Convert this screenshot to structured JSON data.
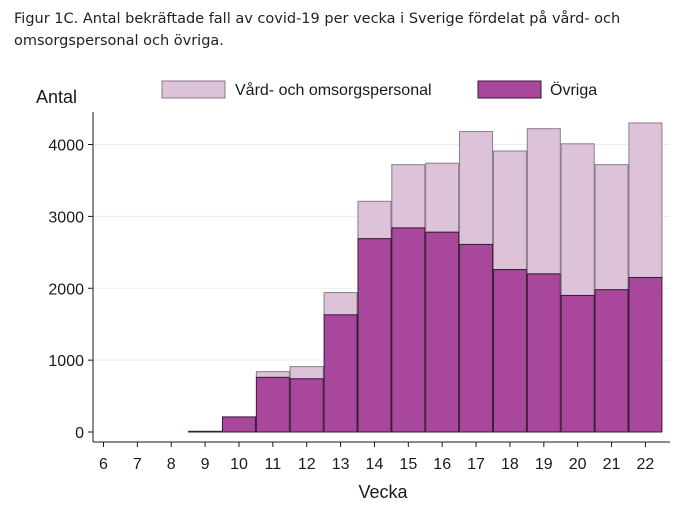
{
  "figure": {
    "caption": "Figur 1C. Antal bekräftade fall av covid-19 per vecka i Sverige fördelat på vård- och omsorgspersonal och övriga."
  },
  "chart_data": {
    "type": "bar",
    "stacked": true,
    "title": "",
    "xlabel": "Vecka",
    "ylabel": "Antal",
    "categories": [
      "6",
      "7",
      "8",
      "9",
      "10",
      "11",
      "12",
      "13",
      "14",
      "15",
      "16",
      "17",
      "18",
      "19",
      "20",
      "21",
      "22"
    ],
    "x_ticks": [
      "6",
      "7",
      "8",
      "9",
      "10",
      "11",
      "12",
      "13",
      "14",
      "15",
      "16",
      "17",
      "18",
      "19",
      "20",
      "21",
      "22"
    ],
    "y_ticks": [
      "0",
      "1000",
      "2000",
      "3000",
      "4000"
    ],
    "ylim": [
      0,
      4450
    ],
    "grid": true,
    "legend_position": "top",
    "series": [
      {
        "name": "Övriga",
        "color": "#a8479b",
        "values": [
          0,
          0,
          0,
          10,
          210,
          760,
          740,
          1630,
          2690,
          2840,
          2780,
          2610,
          2260,
          2200,
          1900,
          1980,
          2150
        ]
      },
      {
        "name": "Vård- och omsorgspersonal",
        "color": "#dcc3da",
        "values": [
          0,
          0,
          0,
          0,
          0,
          80,
          170,
          310,
          520,
          880,
          960,
          1570,
          1650,
          2020,
          2110,
          1740,
          2150
        ]
      }
    ]
  }
}
